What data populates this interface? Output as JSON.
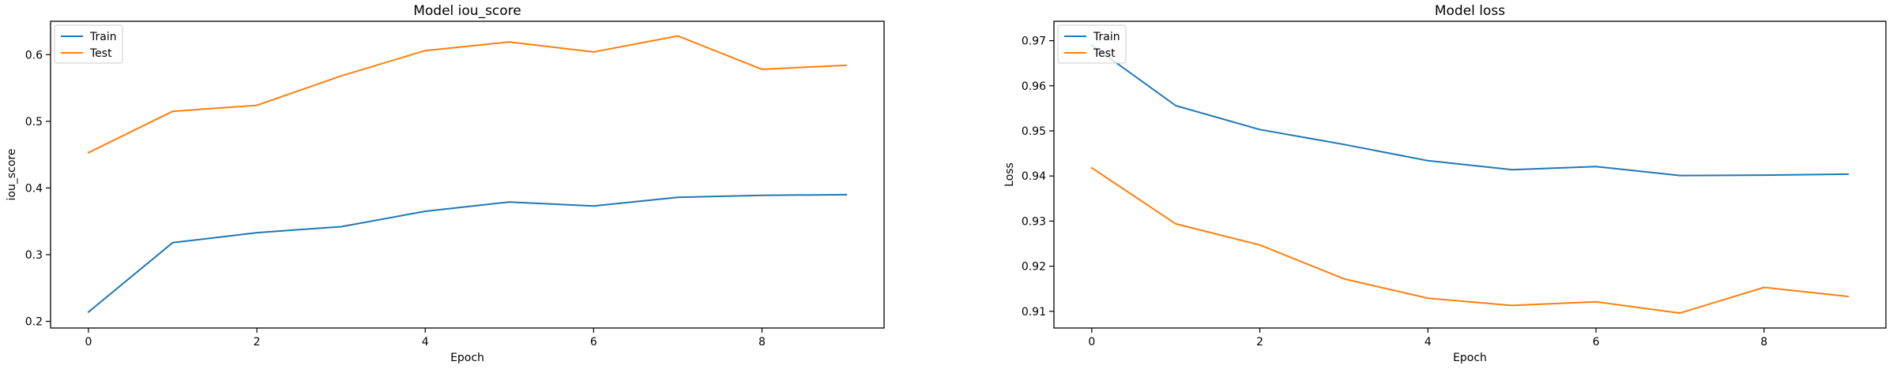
{
  "chart_data": [
    {
      "type": "line",
      "title": "Model iou_score",
      "xlabel": "Epoch",
      "ylabel": "iou_score",
      "x": [
        0,
        1,
        2,
        3,
        4,
        5,
        6,
        7,
        8,
        9
      ],
      "xlim": [
        -0.45,
        9.45
      ],
      "ylim": [
        0.19,
        0.65
      ],
      "xticks": [
        0,
        2,
        4,
        6,
        8
      ],
      "yticks": [
        0.2,
        0.3,
        0.4,
        0.5,
        0.6
      ],
      "ytick_labels": [
        "0.2",
        "0.3",
        "0.4",
        "0.5",
        "0.6"
      ],
      "grid": false,
      "legend_position": "upper left",
      "series": [
        {
          "name": "Train",
          "color": "#1f77b4",
          "values": [
            0.214,
            0.318,
            0.333,
            0.342,
            0.365,
            0.379,
            0.373,
            0.386,
            0.389,
            0.39
          ]
        },
        {
          "name": "Test",
          "color": "#ff7f0e",
          "values": [
            0.453,
            0.515,
            0.524,
            0.568,
            0.606,
            0.619,
            0.604,
            0.628,
            0.578,
            0.584
          ]
        }
      ]
    },
    {
      "type": "line",
      "title": "Model loss",
      "xlabel": "Epoch",
      "ylabel": "Loss",
      "x": [
        0,
        1,
        2,
        3,
        4,
        5,
        6,
        7,
        8,
        9
      ],
      "xlim": [
        -0.45,
        9.45
      ],
      "ylim": [
        0.9063,
        0.9743
      ],
      "xticks": [
        0,
        2,
        4,
        6,
        8
      ],
      "yticks": [
        0.91,
        0.92,
        0.93,
        0.94,
        0.95,
        0.96,
        0.97
      ],
      "ytick_labels": [
        "0.91",
        "0.92",
        "0.93",
        "0.94",
        "0.95",
        "0.96",
        "0.97"
      ],
      "grid": false,
      "legend_position": "upper left",
      "series": [
        {
          "name": "Train",
          "color": "#1f77b4",
          "values": [
            0.969,
            0.9556,
            0.9503,
            0.947,
            0.9434,
            0.9414,
            0.9421,
            0.9401,
            0.9402,
            0.9404
          ]
        },
        {
          "name": "Test",
          "color": "#ff7f0e",
          "values": [
            0.9418,
            0.9294,
            0.9247,
            0.9172,
            0.9129,
            0.9113,
            0.9121,
            0.9096,
            0.9153,
            0.9133
          ]
        }
      ]
    }
  ]
}
